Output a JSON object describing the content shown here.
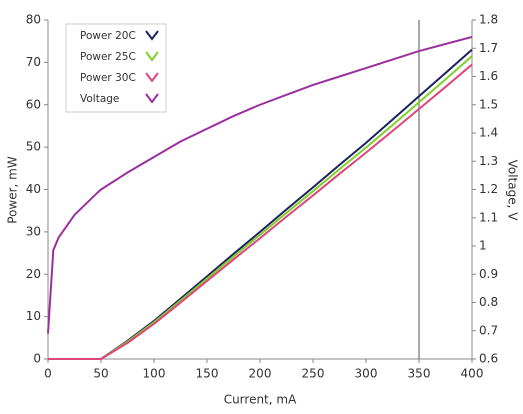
{
  "chart_data": {
    "type": "line",
    "x_label": "Current, mA",
    "y_label": "Power, mW",
    "y2_label": "Voltage, V",
    "x": [
      0,
      5,
      10,
      25,
      47,
      50,
      75,
      100,
      125,
      150,
      175,
      200,
      225,
      250,
      275,
      300,
      325,
      350,
      375,
      400
    ],
    "series": [
      {
        "name": "Power 20C",
        "color": "#1c2160",
        "axis": "y",
        "values": [
          0,
          0,
          0,
          0,
          0,
          0,
          4.3,
          9,
          14.2,
          19.5,
          24.8,
          30,
          35.3,
          40.5,
          45.8,
          51,
          56.5,
          62,
          67.5,
          73
        ]
      },
      {
        "name": "Power 25C",
        "color": "#7fcf2a",
        "axis": "y",
        "values": [
          0,
          0,
          0,
          0,
          0,
          0,
          4.1,
          8.7,
          13.8,
          19,
          24.2,
          29.3,
          34.5,
          39.6,
          44.8,
          49.9,
          55.2,
          60.6,
          66,
          71.5
        ]
      },
      {
        "name": "Power 30C",
        "color": "#e0457a",
        "axis": "y",
        "values": [
          0,
          0,
          0,
          0,
          0,
          0,
          3.8,
          8.3,
          13.3,
          18.4,
          23.5,
          28.5,
          33.6,
          38.6,
          43.7,
          48.7,
          53.8,
          59,
          64.2,
          69.5
        ]
      },
      {
        "name": "Voltage",
        "color": "#9b2f9e",
        "axis": "y2",
        "values": [
          0.69,
          0.985,
          1.03,
          1.11,
          1.19,
          1.2,
          1.26,
          1.315,
          1.37,
          1.415,
          1.46,
          1.5,
          1.535,
          1.57,
          1.6,
          1.63,
          1.66,
          1.69,
          1.715,
          1.74
        ]
      }
    ],
    "xlim": [
      0,
      400
    ],
    "xticks": [
      0,
      50,
      100,
      150,
      200,
      250,
      300,
      350,
      400
    ],
    "ylim": [
      0,
      80
    ],
    "yticks": [
      0,
      10,
      20,
      30,
      40,
      50,
      60,
      70,
      80
    ],
    "y2lim": [
      0.6,
      1.8
    ],
    "y2ticks": [
      0.6,
      0.7,
      0.8,
      0.9,
      1,
      1.1,
      1.2,
      1.3,
      1.4,
      1.5,
      1.6,
      1.7,
      1.8
    ],
    "vline_x": 350,
    "vline_color": "#555555",
    "grid": false,
    "legend": "upper left"
  }
}
